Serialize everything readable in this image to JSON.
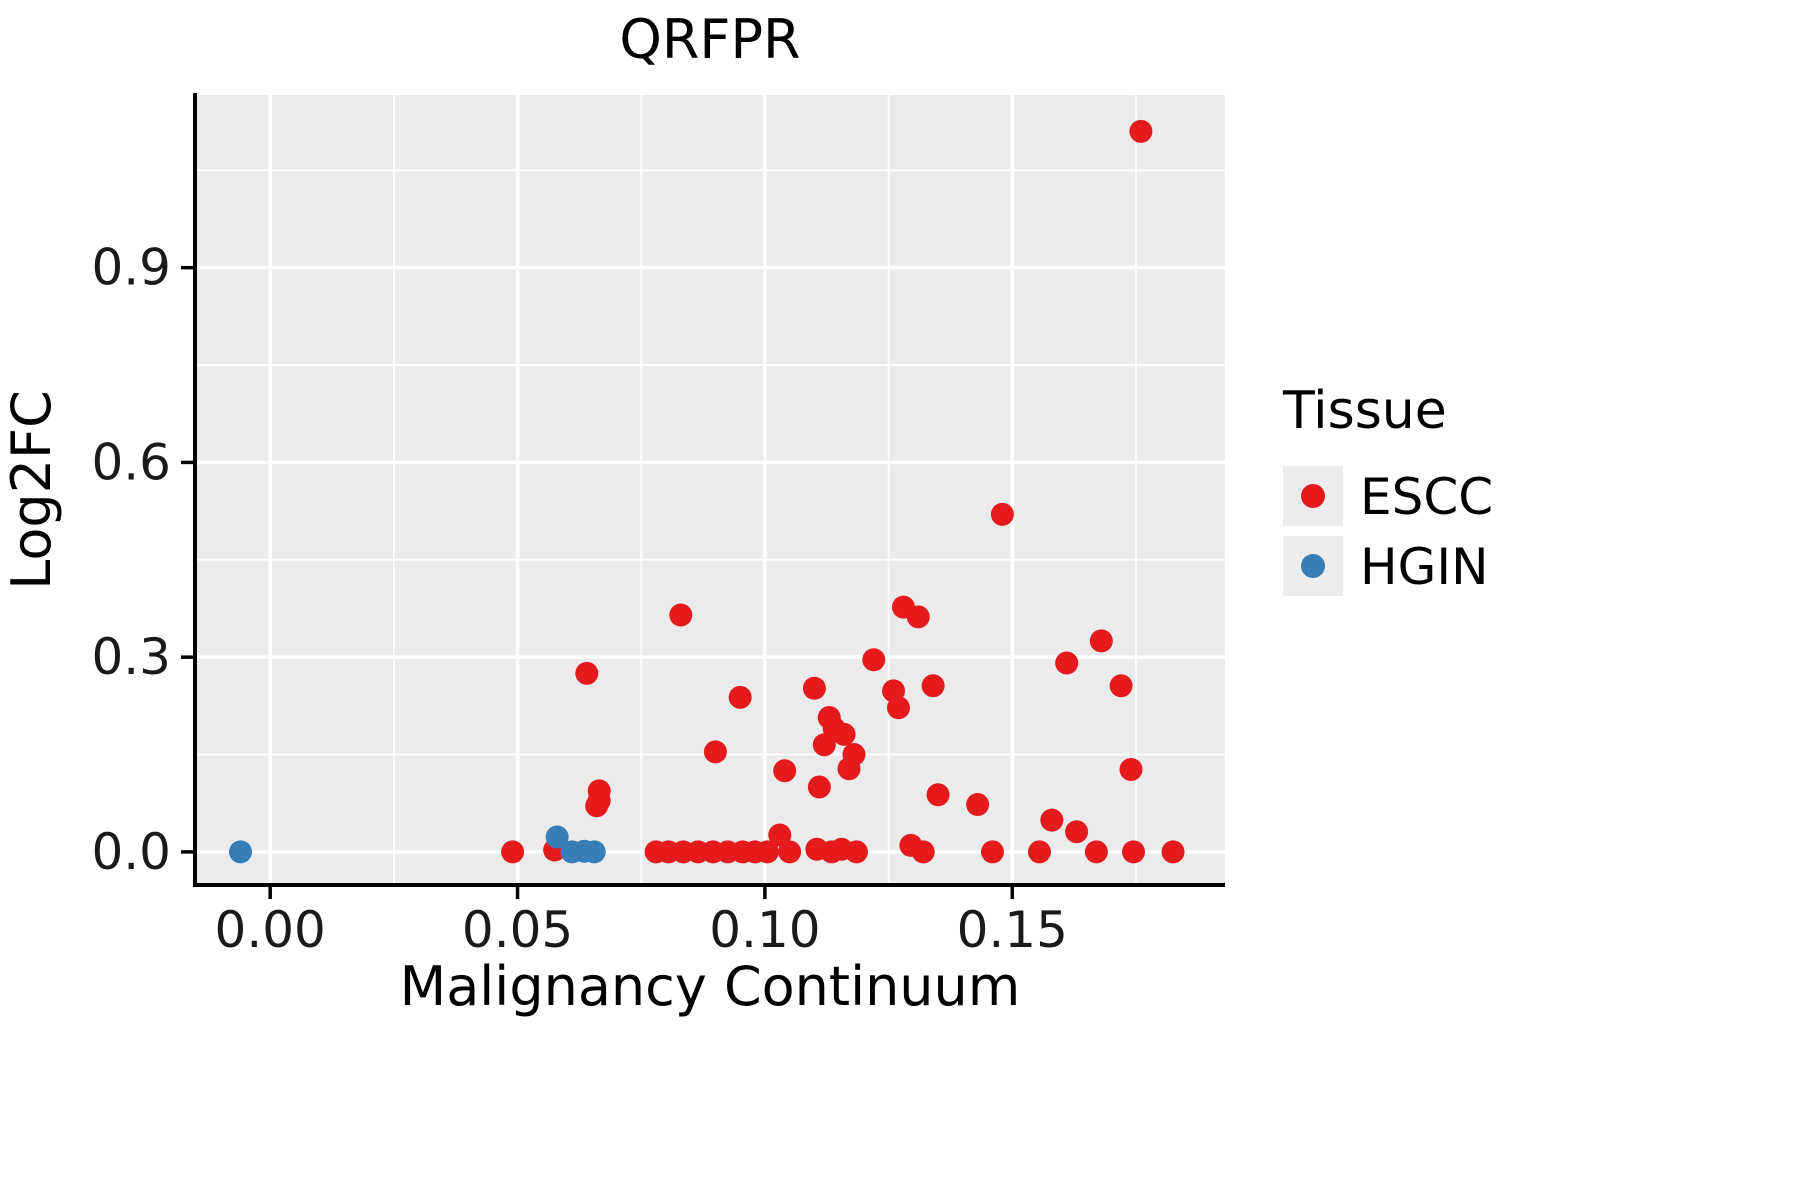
{
  "chart_data": {
    "type": "scatter",
    "title": "QRFPR",
    "xlabel": "Malignancy Continuum",
    "ylabel": "Log2FC",
    "xlim": [
      -0.0152,
      0.193
    ],
    "ylim": [
      -0.051,
      1.166
    ],
    "x_major_ticks": [
      0.0,
      0.05,
      0.1,
      0.15
    ],
    "x_tick_labels": [
      "0.00",
      "0.05",
      "0.10",
      "0.15"
    ],
    "x_minor_ticks": [
      0.025,
      0.075,
      0.125,
      0.175
    ],
    "y_major_ticks": [
      0.0,
      0.3,
      0.6,
      0.9
    ],
    "y_tick_labels": [
      "0.0",
      "0.3",
      "0.6",
      "0.9"
    ],
    "y_minor_ticks": [
      0.15,
      0.45,
      0.75,
      1.05
    ],
    "grid": true,
    "panel_color": "#EBEBEB",
    "grid_color": "#FFFFFF",
    "axis_color": "#000000",
    "legend": {
      "title": "Tissue",
      "position": "right",
      "key_color": "#ECECEC",
      "entries": [
        {
          "label": "ESCC",
          "color": "#E41A1C"
        },
        {
          "label": "HGIN",
          "color": "#377EB8"
        }
      ]
    },
    "series": [
      {
        "name": "ESCC",
        "color": "#E41A1C",
        "points": [
          [
            0.176,
            1.11
          ],
          [
            0.148,
            0.52
          ],
          [
            0.128,
            0.377
          ],
          [
            0.131,
            0.362
          ],
          [
            0.083,
            0.365
          ],
          [
            0.168,
            0.325
          ],
          [
            0.122,
            0.296
          ],
          [
            0.161,
            0.291
          ],
          [
            0.064,
            0.275
          ],
          [
            0.172,
            0.256
          ],
          [
            0.134,
            0.256
          ],
          [
            0.126,
            0.248
          ],
          [
            0.11,
            0.252
          ],
          [
            0.095,
            0.238
          ],
          [
            0.127,
            0.222
          ],
          [
            0.113,
            0.207
          ],
          [
            0.114,
            0.19
          ],
          [
            0.116,
            0.181
          ],
          [
            0.112,
            0.165
          ],
          [
            0.118,
            0.15
          ],
          [
            0.09,
            0.154
          ],
          [
            0.117,
            0.128
          ],
          [
            0.104,
            0.125
          ],
          [
            0.174,
            0.127
          ],
          [
            0.111,
            0.1
          ],
          [
            0.0665,
            0.094
          ],
          [
            0.0665,
            0.079
          ],
          [
            0.066,
            0.071
          ],
          [
            0.135,
            0.088
          ],
          [
            0.143,
            0.073
          ],
          [
            0.158,
            0.049
          ],
          [
            0.163,
            0.031
          ],
          [
            0.103,
            0.026
          ],
          [
            0.049,
            0.0
          ],
          [
            0.0575,
            0.003
          ],
          [
            0.078,
            0.0
          ],
          [
            0.0805,
            0.0
          ],
          [
            0.0835,
            0.0
          ],
          [
            0.0865,
            0.0
          ],
          [
            0.0895,
            0.0
          ],
          [
            0.0925,
            0.0
          ],
          [
            0.0955,
            0.0
          ],
          [
            0.098,
            0.0
          ],
          [
            0.1005,
            0.0
          ],
          [
            0.105,
            0.0
          ],
          [
            0.1105,
            0.004
          ],
          [
            0.1135,
            0.0
          ],
          [
            0.1155,
            0.004
          ],
          [
            0.1185,
            0.0
          ],
          [
            0.1295,
            0.01
          ],
          [
            0.132,
            0.0
          ],
          [
            0.146,
            0.0
          ],
          [
            0.1555,
            0.0
          ],
          [
            0.167,
            0.0
          ],
          [
            0.1745,
            0.0
          ],
          [
            0.1825,
            0.0
          ]
        ]
      },
      {
        "name": "HGIN",
        "color": "#377EB8",
        "points": [
          [
            -0.006,
            0.0
          ],
          [
            0.058,
            0.023
          ],
          [
            0.061,
            0.0
          ],
          [
            0.0635,
            0.001
          ],
          [
            0.0655,
            0.0
          ]
        ]
      }
    ]
  }
}
